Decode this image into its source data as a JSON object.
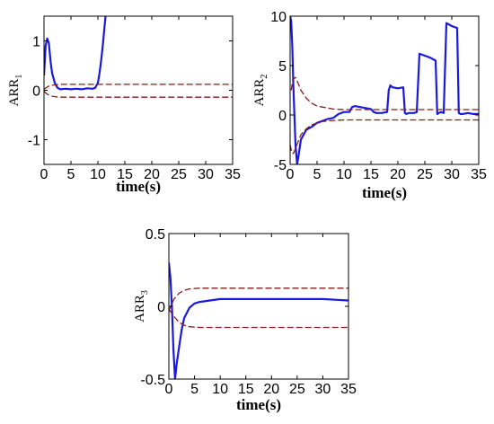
{
  "chart_data": [
    {
      "type": "line",
      "xlabel": "time(s)",
      "ylabel": "ARR",
      "ylabel_sub": "1",
      "xlim": [
        0,
        35
      ],
      "ylim": [
        -1.5,
        1.5
      ],
      "xticks": [
        0,
        5,
        10,
        15,
        20,
        25,
        30,
        35
      ],
      "yticks": [
        -1,
        0,
        1
      ],
      "ytick_labels": [
        "-1",
        "0",
        "1"
      ],
      "series": [
        {
          "kind": "residual",
          "color": "#1a1adc",
          "x": [
            0,
            0.3,
            0.6,
            0.9,
            1.2,
            1.5,
            2,
            2.5,
            3,
            4,
            5,
            6,
            7,
            8,
            9,
            9.5,
            10,
            10.3,
            10.6,
            10.9,
            11.2,
            11.5
          ],
          "y": [
            0.3,
            0.9,
            1.05,
            0.95,
            0.6,
            0.35,
            0.15,
            0.05,
            0.02,
            0.03,
            0.02,
            0.03,
            0.02,
            0.04,
            0.03,
            0.05,
            0.15,
            0.35,
            0.6,
            0.9,
            1.25,
            1.6
          ]
        },
        {
          "kind": "upper-threshold",
          "color": "#8b1a1a",
          "x": [
            0,
            0.5,
            1,
            1.5,
            2,
            3,
            35
          ],
          "y": [
            0.02,
            0.06,
            0.09,
            0.1,
            0.11,
            0.12,
            0.12
          ]
        },
        {
          "kind": "lower-threshold",
          "color": "#8b1a1a",
          "x": [
            0,
            0.5,
            1,
            1.5,
            2,
            3,
            35
          ],
          "y": [
            -0.02,
            -0.07,
            -0.1,
            -0.12,
            -0.13,
            -0.14,
            -0.14
          ]
        }
      ]
    },
    {
      "type": "line",
      "xlabel": "time(s)",
      "ylabel": "ARR",
      "ylabel_sub": "2",
      "xlim": [
        0,
        35
      ],
      "ylim": [
        -5,
        10
      ],
      "xticks": [
        0,
        5,
        10,
        15,
        20,
        25,
        30,
        35
      ],
      "yticks": [
        -5,
        0,
        5,
        10
      ],
      "ytick_labels": [
        "-5",
        "0",
        "5",
        "10"
      ],
      "series": [
        {
          "kind": "residual",
          "color": "#1a1adc",
          "x": [
            0,
            0.2,
            0.4,
            0.6,
            0.8,
            1,
            1.3,
            1.6,
            2,
            2.5,
            3,
            4,
            5,
            6,
            7,
            8,
            9,
            10,
            11,
            11.5,
            12,
            13,
            14,
            15,
            15.5,
            16,
            17,
            18,
            18.3,
            18.6,
            19,
            20,
            21,
            21.3,
            21.6,
            22,
            23,
            23.5,
            24,
            25,
            26,
            27,
            27.3,
            27.6,
            28,
            28.5,
            29,
            30,
            31,
            31.3,
            31.6,
            32,
            33,
            34,
            35
          ],
          "y": [
            10,
            9.5,
            7,
            3,
            0,
            -3,
            -5,
            -4,
            -2.5,
            -2,
            -1.5,
            -1.2,
            -0.8,
            -0.6,
            -0.4,
            -0.3,
            0.1,
            0.3,
            0.3,
            0.8,
            0.9,
            0.8,
            0.7,
            0.6,
            0.3,
            0.2,
            0.2,
            0.3,
            2.5,
            3,
            2.8,
            2.7,
            2.8,
            0.2,
            0.1,
            0.2,
            0.2,
            0.3,
            6.2,
            6,
            5.8,
            5.5,
            0.1,
            0.2,
            0.3,
            0.2,
            9.3,
            9,
            8.8,
            0.2,
            0.1,
            0.1,
            0.2,
            0.1,
            0.1
          ]
        },
        {
          "kind": "upper-threshold",
          "color": "#8b1a1a",
          "x": [
            0.2,
            0.5,
            1,
            1.5,
            2,
            3,
            4,
            5,
            6,
            8,
            10,
            35
          ],
          "y": [
            2.5,
            3.6,
            3.8,
            3.2,
            2.5,
            1.7,
            1.2,
            0.9,
            0.8,
            0.6,
            0.55,
            0.55
          ]
        },
        {
          "kind": "lower-threshold",
          "color": "#8b1a1a",
          "x": [
            0,
            0.3,
            0.6,
            1,
            1.5,
            2,
            3,
            4,
            5,
            6,
            8,
            10,
            35
          ],
          "y": [
            -3,
            -3.8,
            -3.9,
            -3.4,
            -2.7,
            -2,
            -1.4,
            -1,
            -0.8,
            -0.65,
            -0.55,
            -0.5,
            -0.5
          ]
        }
      ]
    },
    {
      "type": "line",
      "xlabel": "time(s)",
      "ylabel": "ARR",
      "ylabel_sub": "3",
      "xlim": [
        0,
        35
      ],
      "ylim": [
        -0.5,
        0.5
      ],
      "xticks": [
        0,
        5,
        10,
        15,
        20,
        25,
        30,
        35
      ],
      "yticks": [
        -0.5,
        0,
        0.5
      ],
      "ytick_labels": [
        "-0.5",
        "0",
        "0.5"
      ],
      "series": [
        {
          "kind": "residual",
          "color": "#1a1adc",
          "x": [
            0,
            0.3,
            0.6,
            0.9,
            1.2,
            1.5,
            2,
            2.5,
            3,
            4,
            5,
            6,
            8,
            10,
            15,
            20,
            25,
            30,
            35
          ],
          "y": [
            0.3,
            0.2,
            0.0,
            -0.3,
            -0.5,
            -0.4,
            -0.28,
            -0.16,
            -0.08,
            -0.01,
            0.02,
            0.03,
            0.04,
            0.05,
            0.05,
            0.05,
            0.05,
            0.05,
            0.04
          ]
        },
        {
          "kind": "upper-threshold",
          "color": "#8b1a1a",
          "x": [
            0,
            1,
            2,
            3,
            4,
            6,
            35
          ],
          "y": [
            -0.03,
            0.05,
            0.09,
            0.11,
            0.12,
            0.125,
            0.125
          ]
        },
        {
          "kind": "lower-threshold",
          "color": "#8b1a1a",
          "x": [
            0,
            1,
            2,
            3,
            4,
            6,
            35
          ],
          "y": [
            -0.02,
            -0.07,
            -0.11,
            -0.13,
            -0.14,
            -0.145,
            -0.145
          ]
        }
      ]
    }
  ]
}
